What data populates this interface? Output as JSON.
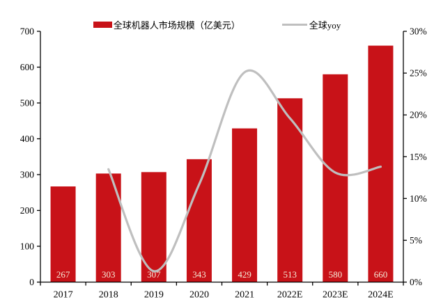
{
  "chart_data": {
    "type": "bar",
    "title": "",
    "categories": [
      "2017",
      "2018",
      "2019",
      "2020",
      "2021",
      "2022E",
      "2023E",
      "2024E"
    ],
    "series": [
      {
        "name": "全球机器人市场规模（亿美元）",
        "type": "bar",
        "axis": "left",
        "values": [
          267,
          303,
          307,
          343,
          429,
          513,
          580,
          660
        ],
        "data_labels_visible": true
      },
      {
        "name": "全球yoy",
        "type": "line",
        "axis": "right",
        "unit": "%",
        "values": [
          null,
          13.5,
          1.3,
          11.7,
          25.1,
          19.6,
          13.1,
          13.8
        ],
        "smooth": true
      }
    ],
    "left_axis": {
      "min": 0,
      "max": 700,
      "step": 100,
      "tick_labels": [
        "0",
        "100",
        "200",
        "300",
        "400",
        "500",
        "600",
        "700"
      ]
    },
    "right_axis": {
      "min": 0,
      "max": 30,
      "step": 5,
      "tick_labels": [
        "0%",
        "5%",
        "10%",
        "15%",
        "20%",
        "25%",
        "30%"
      ]
    },
    "grid": false,
    "legend_position": "top",
    "colors": {
      "bar": "#c81218",
      "bar_label": "#f5ebd8",
      "line": "#bfbfbf",
      "axis": "#000000",
      "tick_text": "#000000"
    }
  }
}
